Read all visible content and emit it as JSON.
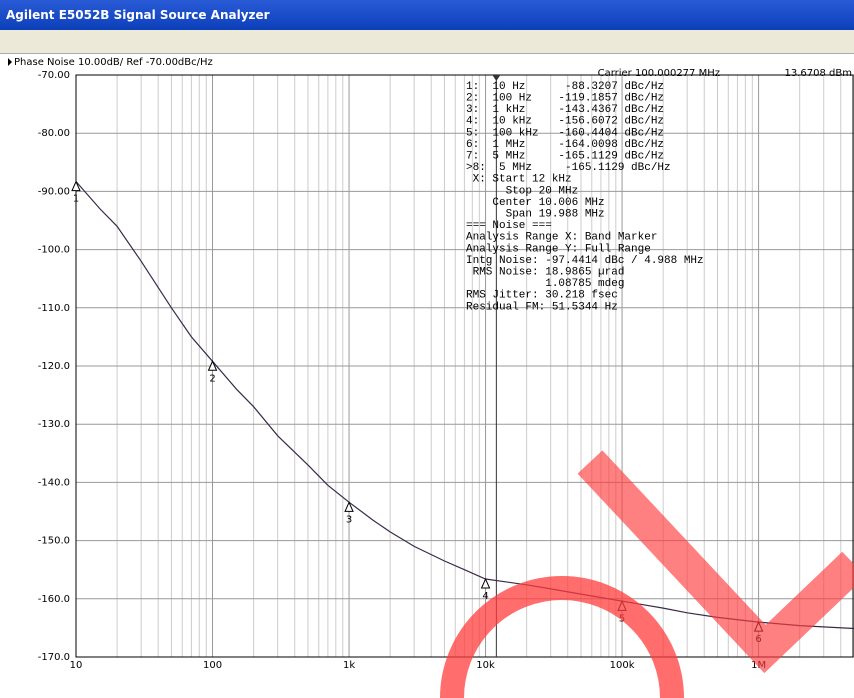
{
  "window": {
    "title": "Agilent E5052B Signal Source Analyzer"
  },
  "header": {
    "trace": "Phase Noise 10.00dB/ Ref -70.00dBc/Hz",
    "carrier": "Carrier 100.000277 MHz",
    "power": "13.6708 dBm"
  },
  "readout": [
    "1:  10 Hz      -88.3207 dBc/Hz",
    "2:  100 Hz    -119.1857 dBc/Hz",
    "3:  1 kHz     -143.4367 dBc/Hz",
    "4:  10 kHz    -156.6072 dBc/Hz",
    "5:  100 kHz   -160.4404 dBc/Hz",
    "6:  1 MHz     -164.0098 dBc/Hz",
    "7:  5 MHz     -165.1129 dBc/Hz",
    ">8:  5 MHz     -165.1129 dBc/Hz",
    " X: Start 12 kHz",
    "      Stop 20 MHz",
    "    Center 10.006 MHz",
    "      Span 19.988 MHz",
    "=== Noise ===",
    "Analysis Range X: Band Marker",
    "Analysis Range Y: Full Range",
    "Intg Noise: -97.4414 dBc / 4.988 MHz",
    " RMS Noise: 18.9865 µrad",
    "            1.08785 mdeg",
    "RMS Jitter: 30.218 fsec",
    "Residual FM: 51.5344 Hz"
  ],
  "chart_data": {
    "type": "line",
    "log_x": true,
    "grid": true,
    "xlim": [
      10,
      5000000
    ],
    "ylim": [
      -170,
      -70
    ],
    "xticks": [
      {
        "value": 10,
        "label": "10"
      },
      {
        "value": 100,
        "label": "100"
      },
      {
        "value": 1000,
        "label": "1k"
      },
      {
        "value": 10000,
        "label": "10k"
      },
      {
        "value": 100000,
        "label": "100k"
      },
      {
        "value": 1000000,
        "label": "1M"
      }
    ],
    "yticks": [
      {
        "value": -70,
        "label": "-70.00"
      },
      {
        "value": -80,
        "label": "-80.00"
      },
      {
        "value": -90,
        "label": "-90.00"
      },
      {
        "value": -100,
        "label": "-100.0"
      },
      {
        "value": -110,
        "label": "-110.0"
      },
      {
        "value": -120,
        "label": "-120.0"
      },
      {
        "value": -130,
        "label": "-130.0"
      },
      {
        "value": -140,
        "label": "-140.0"
      },
      {
        "value": -150,
        "label": "-150.0"
      },
      {
        "value": -160,
        "label": "-160.0"
      },
      {
        "value": -170,
        "label": "-170.0"
      }
    ],
    "series": [
      {
        "color": "#3a2a4a",
        "x": [
          10,
          15,
          20,
          30,
          50,
          70,
          100,
          150,
          200,
          300,
          500,
          700,
          1000,
          1500,
          2000,
          3000,
          5000,
          7000,
          10000,
          20000,
          30000,
          50000,
          100000,
          200000,
          300000,
          500000,
          1000000,
          2000000,
          5000000
        ],
        "values": [
          -88.3,
          -93,
          -96,
          -102,
          -110,
          -115,
          -119.2,
          -124,
          -127,
          -132,
          -137,
          -140.5,
          -143.4,
          -146.5,
          -148.5,
          -151,
          -153.5,
          -155,
          -156.6,
          -157.6,
          -158.3,
          -159.2,
          -160.4,
          -161.6,
          -162.4,
          -163.2,
          -164,
          -164.6,
          -165.1
        ]
      }
    ],
    "markers": [
      {
        "label": "1",
        "x": 10,
        "y": -88.3207
      },
      {
        "label": "2",
        "x": 100,
        "y": -119.1857
      },
      {
        "label": "3",
        "x": 1000,
        "y": -143.4367
      },
      {
        "label": "4",
        "x": 10000,
        "y": -156.6072
      },
      {
        "label": "5",
        "x": 100000,
        "y": -160.4404
      },
      {
        "label": "6",
        "x": 1000000,
        "y": -164.0098
      }
    ],
    "band_start": 12000
  }
}
